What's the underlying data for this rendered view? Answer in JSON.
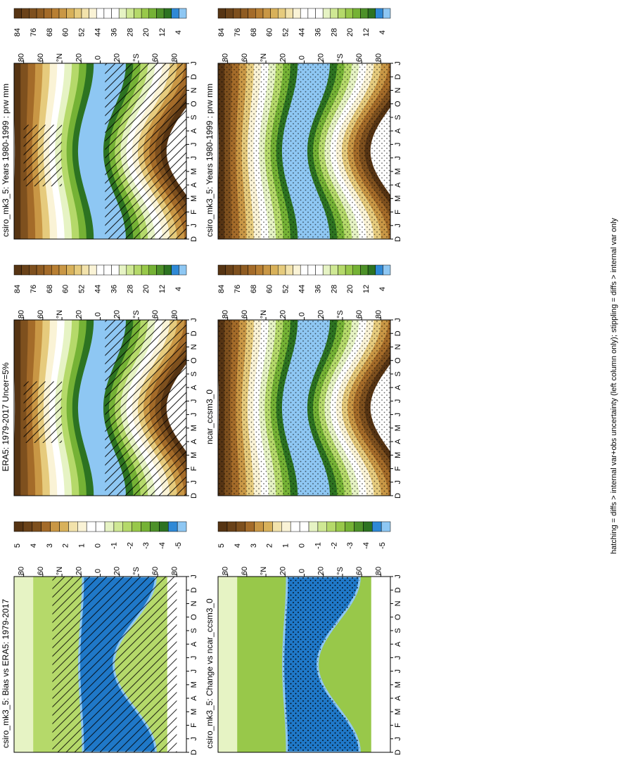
{
  "footer_note": "hatching = diffs > internal var+obs uncertainty (left column only); stippling = diffs > internal var only",
  "colors": {
    "climo_scale": [
      "#563413",
      "#6a4219",
      "#7e501e",
      "#8f5c22",
      "#a46b29",
      "#b87f33",
      "#c99745",
      "#d8b15a",
      "#e6cb7d",
      "#f2e2ab",
      "#faf3d6",
      "#ffffff",
      "#ffffff",
      "#ffffff",
      "#e6f3c4",
      "#cfe894",
      "#b5d96a",
      "#98c84a",
      "#75b235",
      "#4d9129",
      "#2d7321",
      "#2f89d6",
      "#8ec7f3"
    ],
    "diff_scale": [
      "#563413",
      "#6a4219",
      "#7e501e",
      "#a46b29",
      "#c99745",
      "#d8b15a",
      "#f2e2ab",
      "#faf3d6",
      "#ffffff",
      "#ffffff",
      "#e6f3c4",
      "#cfe894",
      "#b5d96a",
      "#98c84a",
      "#75b235",
      "#4d9129",
      "#2d7321",
      "#2f89d6",
      "#8ec7f3"
    ],
    "bias_blue": "#1f78c8",
    "bias_edge": "#8ec7f3"
  },
  "panels": [
    {
      "id": "p11",
      "title": "csiro_mk3_5: Years 1980-1999 : prw mm",
      "kind": "climo",
      "hatched": true,
      "months": [
        "D",
        "J",
        "F",
        "M",
        "A",
        "M",
        "J",
        "J",
        "A",
        "S",
        "O",
        "N",
        "D",
        "J"
      ],
      "lat_ticks": [
        "80",
        "60",
        "°N",
        "20",
        "0",
        "20",
        "°S",
        "60",
        "80"
      ],
      "lat_values": [
        80,
        60,
        40,
        20,
        0,
        -20,
        -40,
        -60,
        -80
      ],
      "colorbar_labels": [
        "84",
        "76",
        "68",
        "60",
        "52",
        "44",
        "36",
        "28",
        "20",
        "12",
        "4"
      ]
    },
    {
      "id": "p12",
      "title": "csiro_mk3_5: Years 1980-1999 : prw mm",
      "kind": "climo",
      "hatched": false,
      "months": [
        "D",
        "J",
        "F",
        "M",
        "A",
        "M",
        "J",
        "J",
        "A",
        "S",
        "O",
        "N",
        "D",
        "J"
      ],
      "lat_ticks": [
        "80",
        "60",
        "°N",
        "20",
        "0",
        "20",
        "°S",
        "60",
        "80"
      ],
      "lat_values": [
        80,
        60,
        40,
        20,
        0,
        -20,
        -40,
        -60,
        -80
      ],
      "colorbar_labels": [
        "84",
        "76",
        "68",
        "60",
        "52",
        "44",
        "36",
        "28",
        "20",
        "12",
        "4"
      ]
    },
    {
      "id": "p21",
      "title": "ERA5: 1979-2017 Uncer=5%",
      "kind": "obs",
      "hatched": true,
      "months": [
        "D",
        "J",
        "F",
        "M",
        "A",
        "M",
        "J",
        "J",
        "A",
        "S",
        "O",
        "N",
        "D",
        "J"
      ],
      "lat_ticks": [
        "80",
        "60",
        "°N",
        "20",
        "0",
        "20",
        "°S",
        "60",
        "80"
      ],
      "lat_values": [
        80,
        60,
        40,
        20,
        0,
        -20,
        -40,
        -60,
        -80
      ],
      "colorbar_labels": [
        "84",
        "76",
        "68",
        "60",
        "52",
        "44",
        "36",
        "28",
        "20",
        "12",
        "4"
      ]
    },
    {
      "id": "p22",
      "title": "ncar_ccsm3_0",
      "kind": "climo",
      "hatched": false,
      "months": [
        "D",
        "J",
        "F",
        "M",
        "A",
        "M",
        "J",
        "J",
        "A",
        "S",
        "O",
        "N",
        "D",
        "J"
      ],
      "lat_ticks": [
        "80",
        "60",
        "°N",
        "20",
        "0",
        "20",
        "°S",
        "60",
        "80"
      ],
      "lat_values": [
        80,
        60,
        40,
        20,
        0,
        -20,
        -40,
        -60,
        -80
      ],
      "colorbar_labels": [
        "84",
        "76",
        "68",
        "60",
        "52",
        "44",
        "36",
        "28",
        "20",
        "12",
        "4"
      ]
    },
    {
      "id": "p31",
      "title": "csiro_mk3_5: Bias vs ERA5: 1979-2017",
      "kind": "bias",
      "hatched": true,
      "months": [
        "D",
        "J",
        "F",
        "M",
        "A",
        "M",
        "J",
        "J",
        "A",
        "S",
        "O",
        "N",
        "D",
        "J"
      ],
      "lat_ticks": [
        "80",
        "60",
        "°N",
        "20",
        "0",
        "20",
        "°S",
        "60",
        "80"
      ],
      "lat_values": [
        80,
        60,
        40,
        20,
        0,
        -20,
        -40,
        -60,
        -80
      ],
      "colorbar_labels": [
        "5",
        "4",
        "3",
        "2",
        "1",
        "0",
        "-1",
        "-2",
        "-3",
        "-4",
        "-5"
      ]
    },
    {
      "id": "p32",
      "title": "csiro_mk3_5: Change vs ncar_ccsm3_0",
      "kind": "change",
      "hatched": false,
      "months": [
        "D",
        "J",
        "F",
        "M",
        "A",
        "M",
        "J",
        "J",
        "A",
        "S",
        "O",
        "N",
        "D",
        "J"
      ],
      "lat_ticks": [
        "80",
        "60",
        "°N",
        "20",
        "0",
        "20",
        "°S",
        "60",
        "80"
      ],
      "lat_values": [
        80,
        60,
        40,
        20,
        0,
        -20,
        -40,
        -60,
        -80
      ],
      "colorbar_labels": [
        "5",
        "4",
        "3",
        "2",
        "1",
        "0",
        "-1",
        "-2",
        "-3",
        "-4",
        "-5"
      ]
    }
  ],
  "chart_data": [
    {
      "type": "heatmap",
      "title": "csiro_mk3_5: Years 1980-1999 : prw mm",
      "x": [
        "D",
        "J",
        "F",
        "M",
        "A",
        "M",
        "J",
        "J",
        "A",
        "S",
        "O",
        "N",
        "D",
        "J"
      ],
      "y": [
        80,
        60,
        40,
        20,
        0,
        -20,
        -40,
        -60,
        -80
      ],
      "ylim": [
        -90,
        90
      ],
      "colorbar": [
        84,
        76,
        68,
        60,
        52,
        44,
        36,
        28,
        20,
        12,
        4
      ],
      "levels": [
        4,
        12,
        20,
        28,
        36,
        44,
        52,
        60,
        68,
        76,
        84
      ]
    },
    {
      "type": "heatmap",
      "title": "csiro_mk3_5: Years 1980-1999 : prw mm",
      "x": [
        "D",
        "J",
        "F",
        "M",
        "A",
        "M",
        "J",
        "J",
        "A",
        "S",
        "O",
        "N",
        "D",
        "J"
      ],
      "y": [
        80,
        60,
        40,
        20,
        0,
        -20,
        -40,
        -60,
        -80
      ],
      "ylim": [
        -90,
        90
      ],
      "colorbar": [
        84,
        76,
        68,
        60,
        52,
        44,
        36,
        28,
        20,
        12,
        4
      ]
    },
    {
      "type": "heatmap",
      "title": "ERA5: 1979-2017 Uncer=5%",
      "x": [
        "D",
        "J",
        "F",
        "M",
        "A",
        "M",
        "J",
        "J",
        "A",
        "S",
        "O",
        "N",
        "D",
        "J"
      ],
      "y": [
        80,
        60,
        40,
        20,
        0,
        -20,
        -40,
        -60,
        -80
      ],
      "ylim": [
        -90,
        90
      ],
      "colorbar": [
        84,
        76,
        68,
        60,
        52,
        44,
        36,
        28,
        20,
        12,
        4
      ]
    },
    {
      "type": "heatmap",
      "title": "ncar_ccsm3_0",
      "x": [
        "D",
        "J",
        "F",
        "M",
        "A",
        "M",
        "J",
        "J",
        "A",
        "S",
        "O",
        "N",
        "D",
        "J"
      ],
      "y": [
        80,
        60,
        40,
        20,
        0,
        -20,
        -40,
        -60,
        -80
      ],
      "ylim": [
        -90,
        90
      ],
      "colorbar": [
        84,
        76,
        68,
        60,
        52,
        44,
        36,
        28,
        20,
        12,
        4
      ]
    },
    {
      "type": "heatmap",
      "title": "csiro_mk3_5: Bias vs ERA5: 1979-2017",
      "x": [
        "D",
        "J",
        "F",
        "M",
        "A",
        "M",
        "J",
        "J",
        "A",
        "S",
        "O",
        "N",
        "D",
        "J"
      ],
      "y": [
        80,
        60,
        40,
        20,
        0,
        -20,
        -40,
        -60,
        -80
      ],
      "ylim": [
        -90,
        90
      ],
      "colorbar": [
        5,
        4,
        3,
        2,
        1,
        0,
        -1,
        -2,
        -3,
        -4,
        -5
      ]
    },
    {
      "type": "heatmap",
      "title": "csiro_mk3_5: Change vs ncar_ccsm3_0",
      "x": [
        "D",
        "J",
        "F",
        "M",
        "A",
        "M",
        "J",
        "J",
        "A",
        "S",
        "O",
        "N",
        "D",
        "J"
      ],
      "y": [
        80,
        60,
        40,
        20,
        0,
        -20,
        -40,
        -60,
        -80
      ],
      "ylim": [
        -90,
        90
      ],
      "colorbar": [
        5,
        4,
        3,
        2,
        1,
        0,
        -1,
        -2,
        -3,
        -4,
        -5
      ]
    }
  ]
}
